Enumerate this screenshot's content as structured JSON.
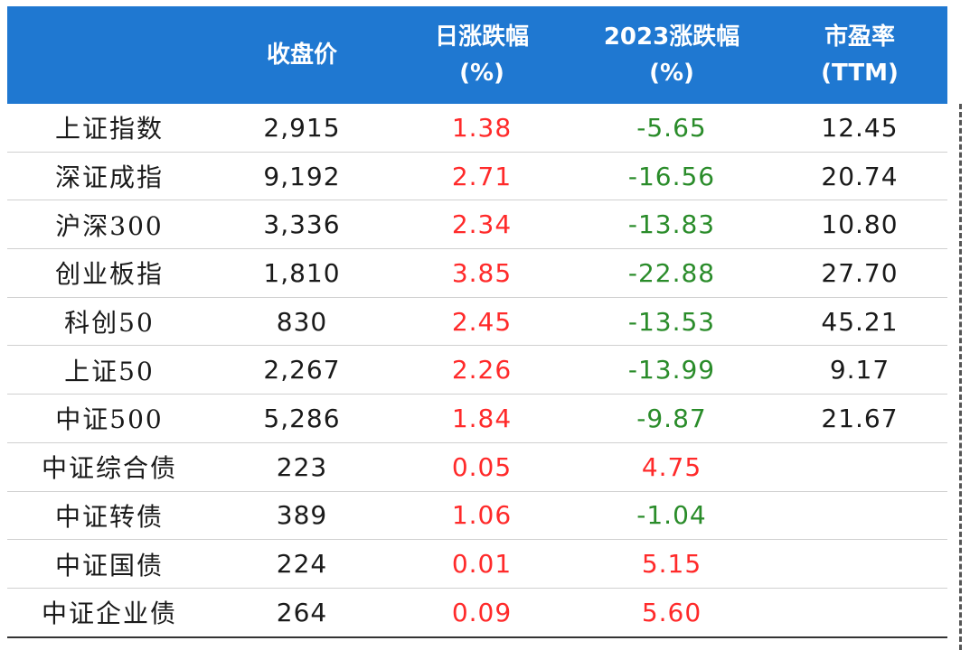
{
  "colors": {
    "header_bg": "#1f78d1",
    "up": "#ff2a2a",
    "down": "#2a8c2a"
  },
  "headers": {
    "name": "",
    "close": "收盘价",
    "daily_l1": "日涨跌幅",
    "daily_l2": "(%)",
    "ytd_l1": "2023涨跌幅",
    "ytd_l2": "(%)",
    "pe_l1": "市盈率",
    "pe_l2": "(TTM)"
  },
  "rows": [
    {
      "name": "上证指数",
      "close": "2,915",
      "daily": "1.38",
      "ytd": "-5.65",
      "pe": "12.45"
    },
    {
      "name": "深证成指",
      "close": "9,192",
      "daily": "2.71",
      "ytd": "-16.56",
      "pe": "20.74"
    },
    {
      "name": "沪深300",
      "close": "3,336",
      "daily": "2.34",
      "ytd": "-13.83",
      "pe": "10.80"
    },
    {
      "name": "创业板指",
      "close": "1,810",
      "daily": "3.85",
      "ytd": "-22.88",
      "pe": "27.70"
    },
    {
      "name": "科创50",
      "close": "830",
      "daily": "2.45",
      "ytd": "-13.53",
      "pe": "45.21"
    },
    {
      "name": "上证50",
      "close": "2,267",
      "daily": "2.26",
      "ytd": "-13.99",
      "pe": "9.17"
    },
    {
      "name": "中证500",
      "close": "5,286",
      "daily": "1.84",
      "ytd": "-9.87",
      "pe": "21.67"
    },
    {
      "name": "中证综合债",
      "close": "223",
      "daily": "0.05",
      "ytd": "4.75",
      "pe": ""
    },
    {
      "name": "中证转债",
      "close": "389",
      "daily": "1.06",
      "ytd": "-1.04",
      "pe": ""
    },
    {
      "name": "中证国债",
      "close": "224",
      "daily": "0.01",
      "ytd": "5.15",
      "pe": ""
    },
    {
      "name": "中证企业债",
      "close": "264",
      "daily": "0.09",
      "ytd": "5.60",
      "pe": ""
    }
  ]
}
